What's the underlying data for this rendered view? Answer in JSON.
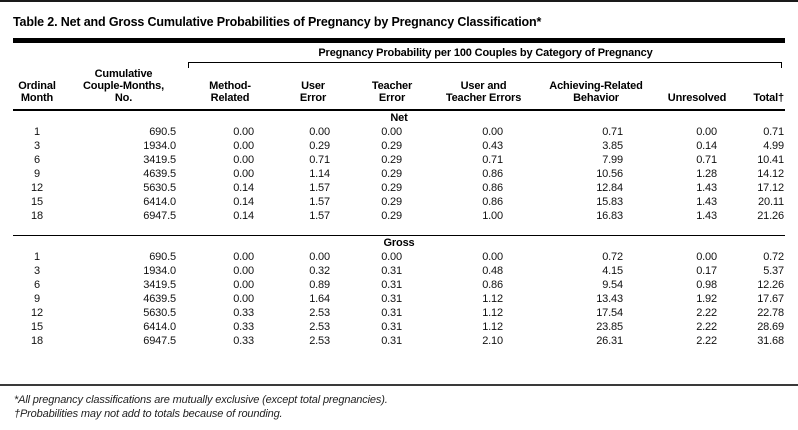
{
  "title": "Table 2. Net and Gross Cumulative Probabilities of Pregnancy by Pregnancy Classification*",
  "table": {
    "spanner_header": "Pregnancy Probability per 100 Couples by Category of Pregnancy",
    "columns": [
      "Ordinal\nMonth",
      "Cumulative\nCouple-Months,\nNo.",
      "Method-\nRelated",
      "User\nError",
      "Teacher\nError",
      "User and\nTeacher Errors",
      "Achieving-Related\nBehavior",
      "Unresolved",
      "Total†"
    ],
    "sections": [
      {
        "label": "Net",
        "rows": [
          [
            "1",
            "690.5",
            "0.00",
            "0.00",
            "0.00",
            "0.00",
            "0.71",
            "0.00",
            "0.71"
          ],
          [
            "3",
            "1934.0",
            "0.00",
            "0.29",
            "0.29",
            "0.43",
            "3.85",
            "0.14",
            "4.99"
          ],
          [
            "6",
            "3419.5",
            "0.00",
            "0.71",
            "0.29",
            "0.71",
            "7.99",
            "0.71",
            "10.41"
          ],
          [
            "9",
            "4639.5",
            "0.00",
            "1.14",
            "0.29",
            "0.86",
            "10.56",
            "1.28",
            "14.12"
          ],
          [
            "12",
            "5630.5",
            "0.14",
            "1.57",
            "0.29",
            "0.86",
            "12.84",
            "1.43",
            "17.12"
          ],
          [
            "15",
            "6414.0",
            "0.14",
            "1.57",
            "0.29",
            "0.86",
            "15.83",
            "1.43",
            "20.11"
          ],
          [
            "18",
            "6947.5",
            "0.14",
            "1.57",
            "0.29",
            "1.00",
            "16.83",
            "1.43",
            "21.26"
          ]
        ]
      },
      {
        "label": "Gross",
        "rows": [
          [
            "1",
            "690.5",
            "0.00",
            "0.00",
            "0.00",
            "0.00",
            "0.72",
            "0.00",
            "0.72"
          ],
          [
            "3",
            "1934.0",
            "0.00",
            "0.32",
            "0.31",
            "0.48",
            "4.15",
            "0.17",
            "5.37"
          ],
          [
            "6",
            "3419.5",
            "0.00",
            "0.89",
            "0.31",
            "0.86",
            "9.54",
            "0.98",
            "12.26"
          ],
          [
            "9",
            "4639.5",
            "0.00",
            "1.64",
            "0.31",
            "1.12",
            "13.43",
            "1.92",
            "17.67"
          ],
          [
            "12",
            "5630.5",
            "0.33",
            "2.53",
            "0.31",
            "1.12",
            "17.54",
            "2.22",
            "22.78"
          ],
          [
            "15",
            "6414.0",
            "0.33",
            "2.53",
            "0.31",
            "1.12",
            "23.85",
            "2.22",
            "28.69"
          ],
          [
            "18",
            "6947.5",
            "0.33",
            "2.53",
            "0.31",
            "2.10",
            "26.31",
            "2.22",
            "31.68"
          ]
        ]
      }
    ]
  },
  "footnotes": [
    "*All pregnancy classifications are mutually exclusive (except total pregnancies).",
    "†Probabilities may not add to totals because of rounding."
  ]
}
